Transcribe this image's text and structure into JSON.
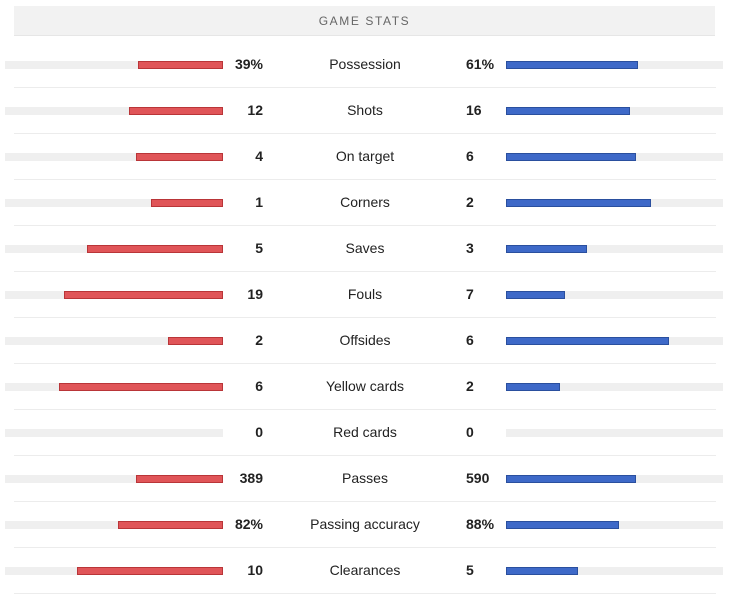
{
  "header": {
    "title": "GAME STATS"
  },
  "colors": {
    "home": "#e05558",
    "away": "#3e69c8",
    "track": "#efefef"
  },
  "stats": [
    {
      "label": "Possession",
      "home": "39%",
      "away": "61%",
      "home_share": 0.39,
      "away_share": 0.61
    },
    {
      "label": "Shots",
      "home": "12",
      "away": "16",
      "home_share": 0.43,
      "away_share": 0.57
    },
    {
      "label": "On target",
      "home": "4",
      "away": "6",
      "home_share": 0.4,
      "away_share": 0.6
    },
    {
      "label": "Corners",
      "home": "1",
      "away": "2",
      "home_share": 0.33,
      "away_share": 0.67
    },
    {
      "label": "Saves",
      "home": "5",
      "away": "3",
      "home_share": 0.625,
      "away_share": 0.375
    },
    {
      "label": "Fouls",
      "home": "19",
      "away": "7",
      "home_share": 0.73,
      "away_share": 0.27
    },
    {
      "label": "Offsides",
      "home": "2",
      "away": "6",
      "home_share": 0.25,
      "away_share": 0.75
    },
    {
      "label": "Yellow cards",
      "home": "6",
      "away": "2",
      "home_share": 0.75,
      "away_share": 0.25
    },
    {
      "label": "Red cards",
      "home": "0",
      "away": "0",
      "home_share": 0,
      "away_share": 0
    },
    {
      "label": "Passes",
      "home": "389",
      "away": "590",
      "home_share": 0.4,
      "away_share": 0.6
    },
    {
      "label": "Passing accuracy",
      "home": "82%",
      "away": "88%",
      "home_share": 0.48,
      "away_share": 0.52
    },
    {
      "label": "Clearances",
      "home": "10",
      "away": "5",
      "home_share": 0.67,
      "away_share": 0.33
    }
  ]
}
